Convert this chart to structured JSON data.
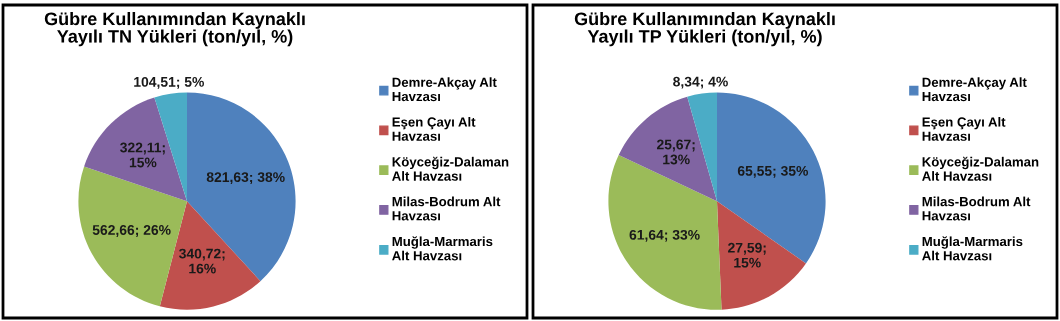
{
  "chart_data": [
    {
      "type": "pie",
      "title": "Gübre Kullanımından Kaynaklı\nYayılı TN Yükleri (ton/yıl, %)",
      "categories": [
        "Demre-Akçay Alt\nHavzası",
        "Eşen Çayı Alt\nHavzası",
        "Köyceğiz-Dalaman\nAlt Havzası",
        "Milas-Bodrum Alt\nHavzası",
        "Muğla-Marmaris\nAlt Havzası"
      ],
      "values": [
        821.63,
        340.72,
        562.66,
        322.11,
        104.51
      ],
      "value_labels": [
        "821,63; 38%",
        "340,72;\n16%",
        "562,66; 26%",
        "322,11;\n15%",
        "104,51; 5%"
      ],
      "colors": [
        "#4f81bd",
        "#c0504d",
        "#9bbb59",
        "#8064a2",
        "#4bacc6"
      ],
      "legend": "right"
    },
    {
      "type": "pie",
      "title": "Gübre Kullanımından Kaynaklı\nYayılı TP Yükleri (ton/yıl, %)",
      "categories": [
        "Demre-Akçay Alt\nHavzası",
        "Eşen Çayı Alt\nHavzası",
        "Köyceğiz-Dalaman\nAlt Havzası",
        "Milas-Bodrum Alt\nHavzası",
        "Muğla-Marmaris\nAlt Havzası"
      ],
      "values": [
        65.55,
        27.59,
        61.64,
        25.67,
        8.34
      ],
      "value_labels": [
        "65,55; 35%",
        "27,59;\n15%",
        "61,64; 33%",
        "25,67;\n13%",
        "8,34; 4%"
      ],
      "colors": [
        "#4f81bd",
        "#c0504d",
        "#9bbb59",
        "#8064a2",
        "#4bacc6"
      ],
      "legend": "right"
    }
  ]
}
